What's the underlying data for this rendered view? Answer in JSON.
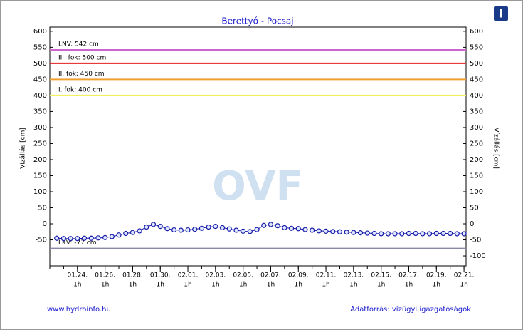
{
  "chart_data": {
    "type": "line",
    "title": "Berettyó - Pocsaj",
    "y_label": "Vízállás [cm]",
    "y2_label": "Vízállás [cm]",
    "watermark": "OVF",
    "info_icon": "i",
    "footer_left": "www.hydroinfo.hu",
    "footer_right": "Adatforrás: vízügyi igazgatóságok",
    "xlim": [
      0,
      30.15
    ],
    "xticks": [
      {
        "value": 2,
        "label": "01.24.",
        "time": "1h"
      },
      {
        "value": 4,
        "label": "01.26.",
        "time": "1h"
      },
      {
        "value": 6,
        "label": "01.28.",
        "time": "1h"
      },
      {
        "value": 8,
        "label": "01.30.",
        "time": "1h"
      },
      {
        "value": 10,
        "label": "02.01.",
        "time": "1h"
      },
      {
        "value": 12,
        "label": "02.03.",
        "time": "1h"
      },
      {
        "value": 14,
        "label": "02.05.",
        "time": "1h"
      },
      {
        "value": 16,
        "label": "02.07.",
        "time": "1h"
      },
      {
        "value": 18,
        "label": "02.09.",
        "time": "1h"
      },
      {
        "value": 20,
        "label": "02.11.",
        "time": "1h"
      },
      {
        "value": 22,
        "label": "02.13.",
        "time": "1h"
      },
      {
        "value": 24,
        "label": "02.15.",
        "time": "1h"
      },
      {
        "value": 26,
        "label": "02.17.",
        "time": "1h"
      },
      {
        "value": 28,
        "label": "02.19.",
        "time": "1h"
      },
      {
        "value": 30,
        "label": "02.21.",
        "time": "1h"
      }
    ],
    "ylim": [
      -131,
      613
    ],
    "yticks": [
      600,
      550,
      500,
      450,
      400,
      350,
      300,
      250,
      200,
      150,
      100,
      50,
      0,
      -50
    ],
    "y2lim": [
      -131,
      613
    ],
    "y2ticks": [
      600,
      550,
      500,
      450,
      400,
      350,
      300,
      250,
      200,
      150,
      100,
      50,
      0,
      -50,
      -100
    ],
    "reference_lines": [
      {
        "value": 542,
        "label": "LNV: 542 cm",
        "color": "#cc66cc"
      },
      {
        "value": 500,
        "label": "III. fok: 500 cm",
        "color": "#e02020"
      },
      {
        "value": 450,
        "label": "II. fok: 450 cm",
        "color": "#f0a030"
      },
      {
        "value": 400,
        "label": "I. fok: 400 cm",
        "color": "#f0f060"
      },
      {
        "value": -77,
        "label": "LKV: -77 cm",
        "color": "#8888aa"
      }
    ],
    "series": [
      {
        "color": "#1a1aa8",
        "x": [
          0.5,
          1,
          1.5,
          2,
          2.5,
          3,
          3.5,
          4,
          4.5,
          5,
          5.5,
          6,
          6.5,
          7,
          7.5,
          8,
          8.5,
          9,
          9.5,
          10,
          10.5,
          11,
          11.5,
          12,
          12.5,
          13,
          13.5,
          14,
          14.5,
          15,
          15.5,
          16,
          16.5,
          17,
          17.5,
          18,
          18.5,
          19,
          19.5,
          20,
          20.5,
          21,
          21.5,
          22,
          22.5,
          23,
          23.5,
          24,
          24.5,
          25,
          25.5,
          26,
          26.5,
          27,
          27.5,
          28,
          28.5,
          29,
          29.5,
          30
        ],
        "values": [
          -45,
          -46,
          -46,
          -46,
          -45,
          -45,
          -44,
          -43,
          -40,
          -35,
          -30,
          -27,
          -22,
          -10,
          -2,
          -8,
          -15,
          -19,
          -20,
          -19,
          -17,
          -14,
          -10,
          -8,
          -12,
          -16,
          -20,
          -23,
          -24,
          -18,
          -5,
          -2,
          -6,
          -12,
          -14,
          -15,
          -18,
          -20,
          -22,
          -23,
          -24,
          -25,
          -26,
          -27,
          -28,
          -29,
          -30,
          -31,
          -31,
          -31,
          -31,
          -30,
          -30,
          -31,
          -31,
          -30,
          -30,
          -30,
          -31,
          -31
        ]
      }
    ]
  }
}
